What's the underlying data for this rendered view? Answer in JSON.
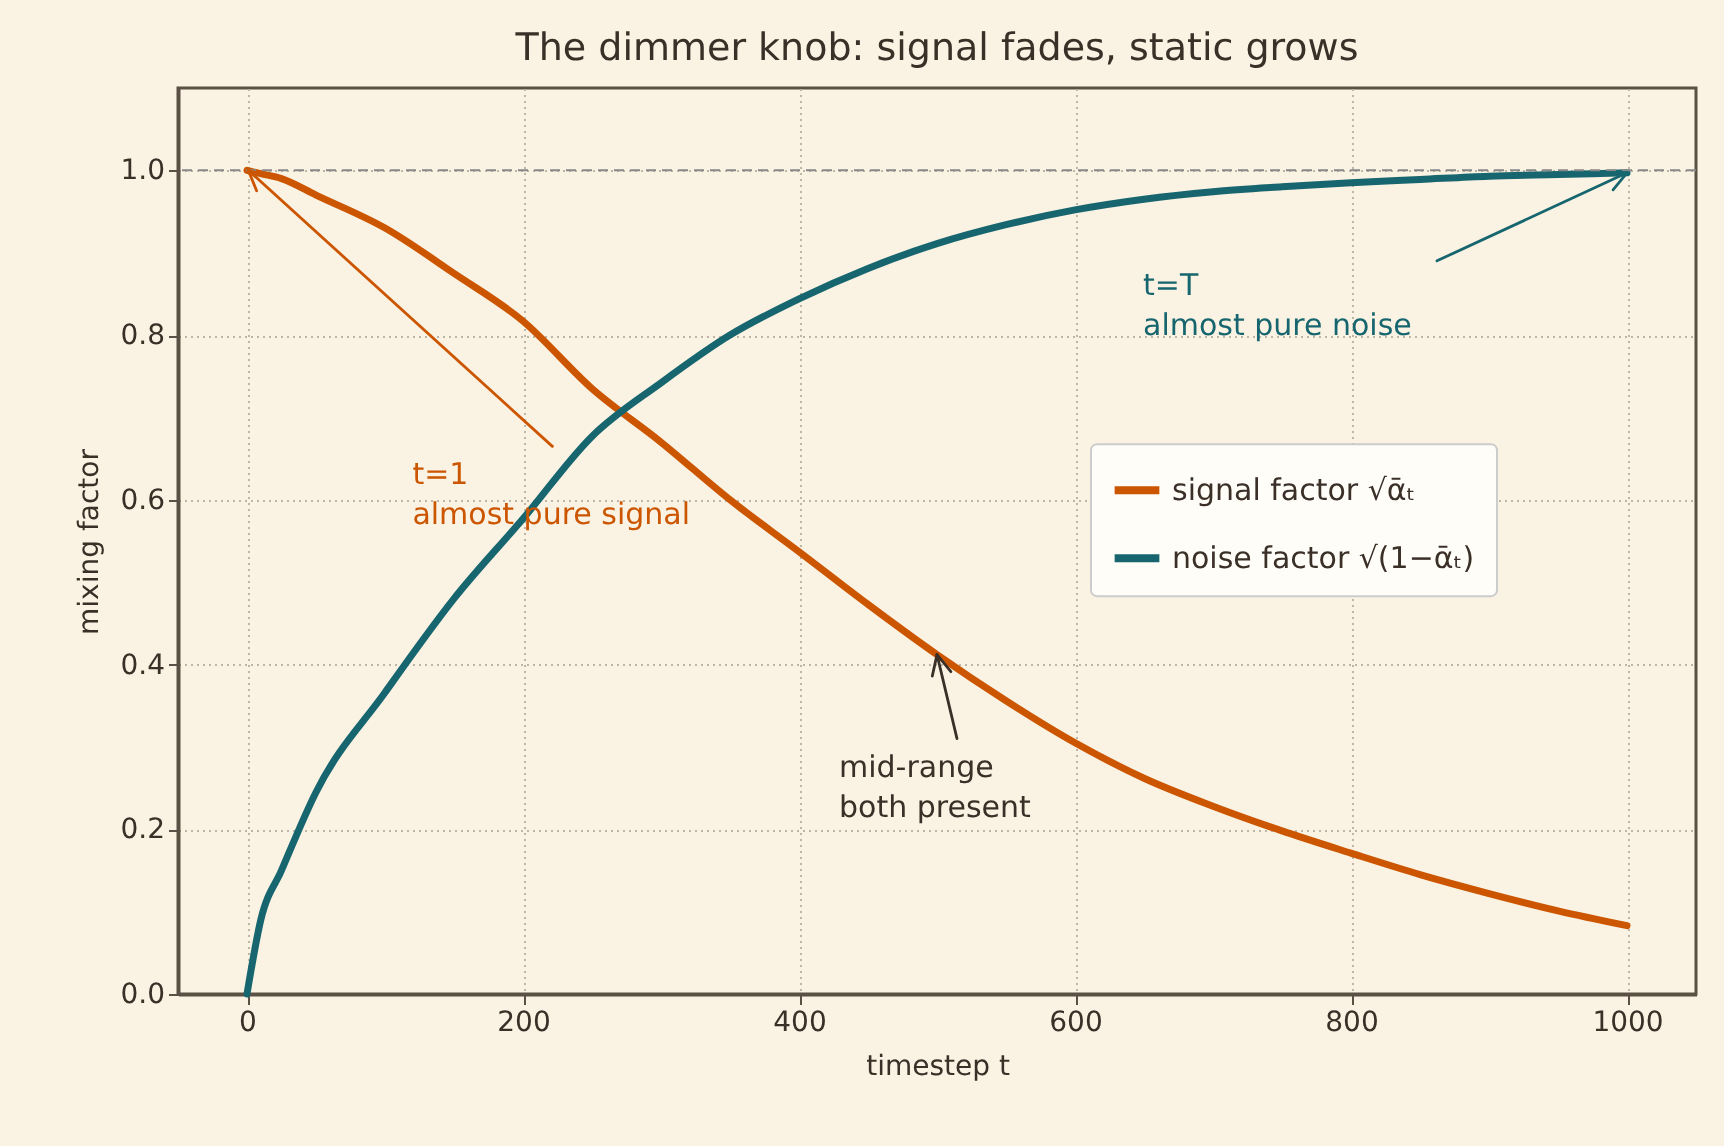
{
  "chart_data": {
    "type": "line",
    "title": "The dimmer knob: signal fades, static grows",
    "xlabel": "timestep  t",
    "ylabel": "mixing factor",
    "x": [
      0,
      10,
      25,
      50,
      100,
      150,
      200,
      250,
      300,
      350,
      400,
      450,
      500,
      550,
      600,
      650,
      700,
      750,
      800,
      850,
      900,
      950,
      1000
    ],
    "series": [
      {
        "name": "signal factor √ᾱₜ",
        "color": "#cc5500",
        "values": [
          1.0,
          0.996,
          0.99,
          0.97,
          0.93,
          0.875,
          0.817,
          0.735,
          0.67,
          0.6,
          0.537,
          0.473,
          0.412,
          0.356,
          0.305,
          0.262,
          0.228,
          0.198,
          0.171,
          0.145,
          0.122,
          0.101,
          0.083
        ]
      },
      {
        "name": "noise factor √(1−ᾱₜ)",
        "color": "#17666f",
        "values": [
          0.0,
          0.09,
          0.15,
          0.245,
          0.366,
          0.48,
          0.577,
          0.677,
          0.742,
          0.8,
          0.844,
          0.881,
          0.911,
          0.934,
          0.952,
          0.965,
          0.974,
          0.98,
          0.985,
          0.989,
          0.993,
          0.995,
          0.997
        ]
      }
    ],
    "xlim": [
      -50,
      1050
    ],
    "ylim": [
      0,
      1.1
    ],
    "xticks": [
      0,
      200,
      400,
      600,
      800,
      {
        "value": 1000,
        "label": "1000"
      }
    ],
    "yticks": [
      {
        "value": 0,
        "label": "0.0"
      },
      0.2,
      0.4,
      0.6,
      0.8,
      {
        "value": 1,
        "label": "1.0"
      }
    ],
    "grid": true,
    "legend": "right",
    "line_style": "solid",
    "marker": "none",
    "ref_lines": [
      {
        "axis": "y",
        "value": 1.0,
        "color": "#888888",
        "line_style": "dashed"
      }
    ],
    "annotations": [
      {
        "text": "t=1\nalmost pure signal",
        "x": 1,
        "y": 1.0
      },
      {
        "text": "t=T\nalmost pure noise",
        "x": 1000,
        "y": 0.997
      },
      {
        "text": "mid-range\nboth present",
        "x": 500,
        "y": 0.412
      }
    ]
  }
}
